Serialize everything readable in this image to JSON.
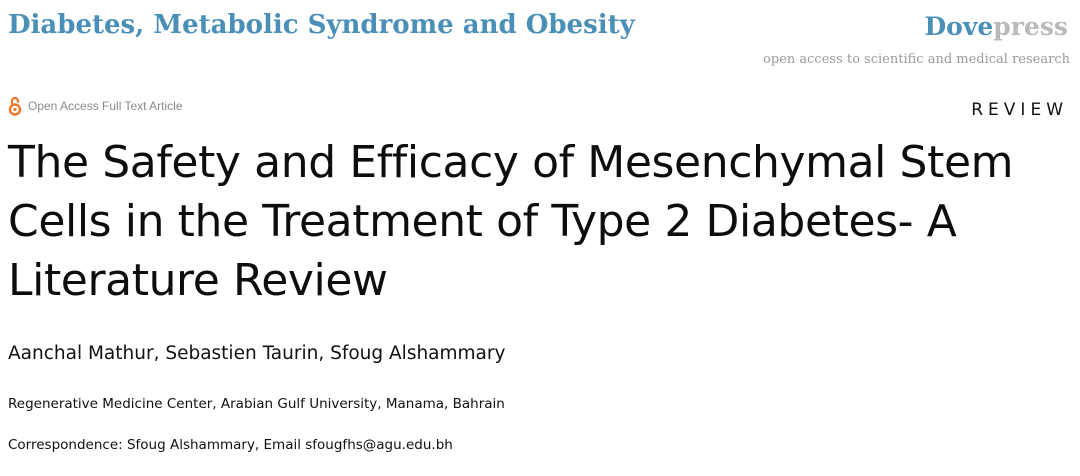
{
  "header": {
    "journal_title": "Diabetes, Metabolic Syndrome and Obesity",
    "publisher_name_part1": "Dove",
    "publisher_name_part2": "press",
    "publisher_tagline": "open access to scientific and medical research"
  },
  "article": {
    "access_label": "Open Access Full Text Article",
    "access_icon": "open-access-lock-icon",
    "type": "REVIEW",
    "title": "The Safety and Efficacy of Mesenchymal Stem Cells in the Treatment of Type 2 Diabetes- A Literature Review",
    "authors": "Aanchal Mathur, Sebastien Taurin, Sfoug Alshammary",
    "affiliation": "Regenerative Medicine Center, Arabian Gulf University, Manama, Bahrain",
    "correspondence": "Correspondence: Sfoug Alshammary, Email sfougfhs@agu.edu.bh"
  },
  "colors": {
    "journal_accent": "#4a8fb8",
    "press_gray": "#b9b9b9",
    "open_access_orange": "#f0762a"
  }
}
